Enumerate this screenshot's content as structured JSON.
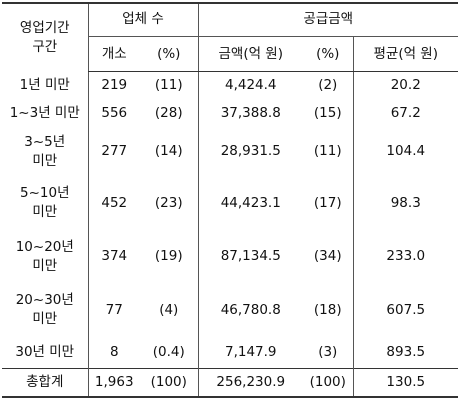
{
  "headers": {
    "period": "영업기간\n구간",
    "company_count": "업체 수",
    "supply_amount": "공급금액",
    "count_unit": "개소",
    "pct1": "(%)",
    "amount": "금액(억 원)",
    "pct2": "(%)",
    "average": "평균(억 원)"
  },
  "rows": [
    {
      "period": "1년 미만",
      "count": "219",
      "count_pct": "(11)",
      "amount": "4,424.4",
      "amount_pct": "(2)",
      "avg": "20.2"
    },
    {
      "period": "1~3년 미만",
      "count": "556",
      "count_pct": "(28)",
      "amount": "37,388.8",
      "amount_pct": "(15)",
      "avg": "67.2"
    },
    {
      "period": "3~5년\n미만",
      "count": "277",
      "count_pct": "(14)",
      "amount": "28,931.5",
      "amount_pct": "(11)",
      "avg": "104.4"
    },
    {
      "period": "5~10년\n미만",
      "count": "452",
      "count_pct": "(23)",
      "amount": "44,423.1",
      "amount_pct": "(17)",
      "avg": "98.3"
    },
    {
      "period": "10~20년\n미만",
      "count": "374",
      "count_pct": "(19)",
      "amount": "87,134.5",
      "amount_pct": "(34)",
      "avg": "233.0"
    },
    {
      "period": "20~30년\n미만",
      "count": "77",
      "count_pct": "(4)",
      "amount": "46,780.8",
      "amount_pct": "(18)",
      "avg": "607.5"
    },
    {
      "period": "30년 미만",
      "count": "8",
      "count_pct": "(0.4)",
      "amount": "7,147.9",
      "amount_pct": "(3)",
      "avg": "893.5"
    }
  ],
  "total": {
    "period": "총합계",
    "count": "1,963",
    "count_pct": "(100)",
    "amount": "256,230.9",
    "amount_pct": "(100)",
    "avg": "130.5"
  }
}
